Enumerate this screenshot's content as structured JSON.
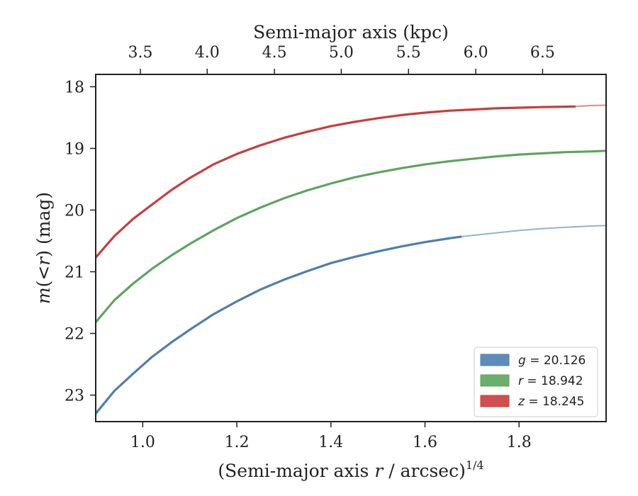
{
  "chart_data": {
    "type": "line",
    "xlabel_parts": [
      "(Semi-major axis ",
      "r",
      " / arcsec)",
      "1/4"
    ],
    "ylabel_parts": [
      "m",
      "(<",
      "r",
      ")",
      " (mag)"
    ],
    "top_xlabel": "Semi-major axis (kpc)",
    "xlim": [
      0.9,
      1.985
    ],
    "ylim": [
      23.43,
      17.8
    ],
    "x_ticks": [
      1.0,
      1.2,
      1.4,
      1.6,
      1.8
    ],
    "x_tick_labels": [
      "1.0",
      "1.2",
      "1.4",
      "1.6",
      "1.8"
    ],
    "y_ticks": [
      18,
      19,
      20,
      21,
      22,
      23
    ],
    "y_tick_labels": [
      "18",
      "19",
      "20",
      "21",
      "22",
      "23"
    ],
    "top_ticks_kpc": [
      3.5,
      4.0,
      4.5,
      5.0,
      5.5,
      6.0,
      6.5
    ],
    "top_tick_labels": [
      "3.5",
      "4.0",
      "4.5",
      "5.0",
      "5.5",
      "6.0",
      "6.5"
    ],
    "top_tick_positions_x": [
      0.995,
      1.137,
      1.28,
      1.422,
      1.565,
      1.708,
      1.85
    ],
    "grid": false,
    "legend_position": "lower-right",
    "series": [
      {
        "name": "g",
        "legend_value": "20.126",
        "color": "#4c7fb0",
        "x": [
          0.9,
          0.94,
          0.98,
          1.02,
          1.06,
          1.1,
          1.15,
          1.2,
          1.25,
          1.3,
          1.35,
          1.4,
          1.45,
          1.5,
          1.55,
          1.6,
          1.65,
          1.678
        ],
        "y": [
          23.3,
          22.93,
          22.65,
          22.38,
          22.15,
          21.94,
          21.69,
          21.48,
          21.29,
          21.13,
          20.99,
          20.86,
          20.76,
          20.67,
          20.59,
          20.52,
          20.46,
          20.43
        ],
        "extension_x": [
          1.678,
          1.75,
          1.8,
          1.85,
          1.9,
          1.95,
          1.985
        ],
        "extension_y": [
          20.43,
          20.37,
          20.33,
          20.3,
          20.28,
          20.26,
          20.25
        ]
      },
      {
        "name": "r",
        "legend_value": "18.942",
        "color": "#5ba65c",
        "x": [
          0.9,
          0.94,
          0.98,
          1.02,
          1.06,
          1.1,
          1.15,
          1.2,
          1.25,
          1.3,
          1.35,
          1.4,
          1.45,
          1.5,
          1.55,
          1.6,
          1.65,
          1.7,
          1.75,
          1.8,
          1.85,
          1.9,
          1.95,
          1.985
        ],
        "y": [
          21.82,
          21.46,
          21.19,
          20.95,
          20.74,
          20.55,
          20.33,
          20.13,
          19.96,
          19.81,
          19.68,
          19.57,
          19.47,
          19.39,
          19.32,
          19.26,
          19.21,
          19.17,
          19.13,
          19.1,
          19.08,
          19.06,
          19.05,
          19.04
        ],
        "extension_x": [],
        "extension_y": []
      },
      {
        "name": "z",
        "legend_value": "18.245",
        "color": "#cc3b3b",
        "x": [
          0.9,
          0.94,
          0.98,
          1.02,
          1.06,
          1.1,
          1.15,
          1.2,
          1.25,
          1.3,
          1.35,
          1.4,
          1.45,
          1.5,
          1.55,
          1.6,
          1.65,
          1.7,
          1.75,
          1.8,
          1.85,
          1.92
        ],
        "y": [
          20.77,
          20.42,
          20.14,
          19.91,
          19.68,
          19.48,
          19.26,
          19.09,
          18.95,
          18.83,
          18.73,
          18.64,
          18.57,
          18.51,
          18.46,
          18.42,
          18.39,
          18.37,
          18.35,
          18.34,
          18.33,
          18.32
        ],
        "extension_x": [
          1.92,
          1.95,
          1.985
        ],
        "extension_y": [
          18.32,
          18.305,
          18.3
        ]
      }
    ]
  }
}
